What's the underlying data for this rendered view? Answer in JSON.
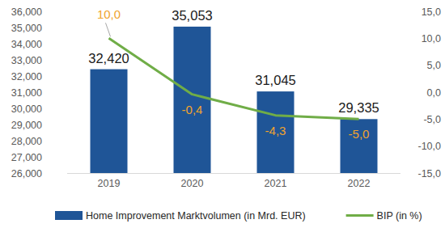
{
  "chart_data": {
    "type": "bar",
    "categories": [
      "2019",
      "2020",
      "2021",
      "2022"
    ],
    "series": [
      {
        "name": "Home Improvement Marktvolumen (in Mrd. EUR)",
        "type": "bar",
        "color": "#1f5597",
        "axis": "y",
        "values": [
          32420,
          35053,
          31045,
          29335
        ],
        "value_labels": [
          "32,420",
          "35,053",
          "31,045",
          "29,335"
        ]
      },
      {
        "name": "BIP (in %)",
        "type": "line",
        "color": "#70ad47",
        "axis": "y2",
        "marker": "none",
        "line_style": "solid",
        "values": [
          10.0,
          -0.4,
          -4.3,
          -5.0
        ],
        "value_labels": [
          "10,0",
          "-0,4",
          "-4,3",
          "-5,0"
        ]
      }
    ],
    "ylim": [
      26000,
      36000
    ],
    "yticks": [
      {
        "value": 26000,
        "label": "26,000"
      },
      {
        "value": 27000,
        "label": "27,000"
      },
      {
        "value": 28000,
        "label": "28,000"
      },
      {
        "value": 29000,
        "label": "29,000"
      },
      {
        "value": 30000,
        "label": "30,000"
      },
      {
        "value": 31000,
        "label": "31,000"
      },
      {
        "value": 32000,
        "label": "32,000"
      },
      {
        "value": 33000,
        "label": "33,000"
      },
      {
        "value": 34000,
        "label": "34,000"
      },
      {
        "value": 35000,
        "label": "35,000"
      },
      {
        "value": 36000,
        "label": "36,000"
      }
    ],
    "y2lim": [
      -15,
      15
    ],
    "y2ticks": [
      {
        "value": -15,
        "label": "-15,0"
      },
      {
        "value": -10,
        "label": "-10,0"
      },
      {
        "value": -5,
        "label": "-5,0"
      },
      {
        "value": 0,
        "label": "0,0"
      },
      {
        "value": 5,
        "label": "5,0"
      },
      {
        "value": 10,
        "label": "10,0"
      },
      {
        "value": 15,
        "label": "15,0"
      }
    ],
    "grid": false,
    "legend": "bottom",
    "data_labels": true
  }
}
